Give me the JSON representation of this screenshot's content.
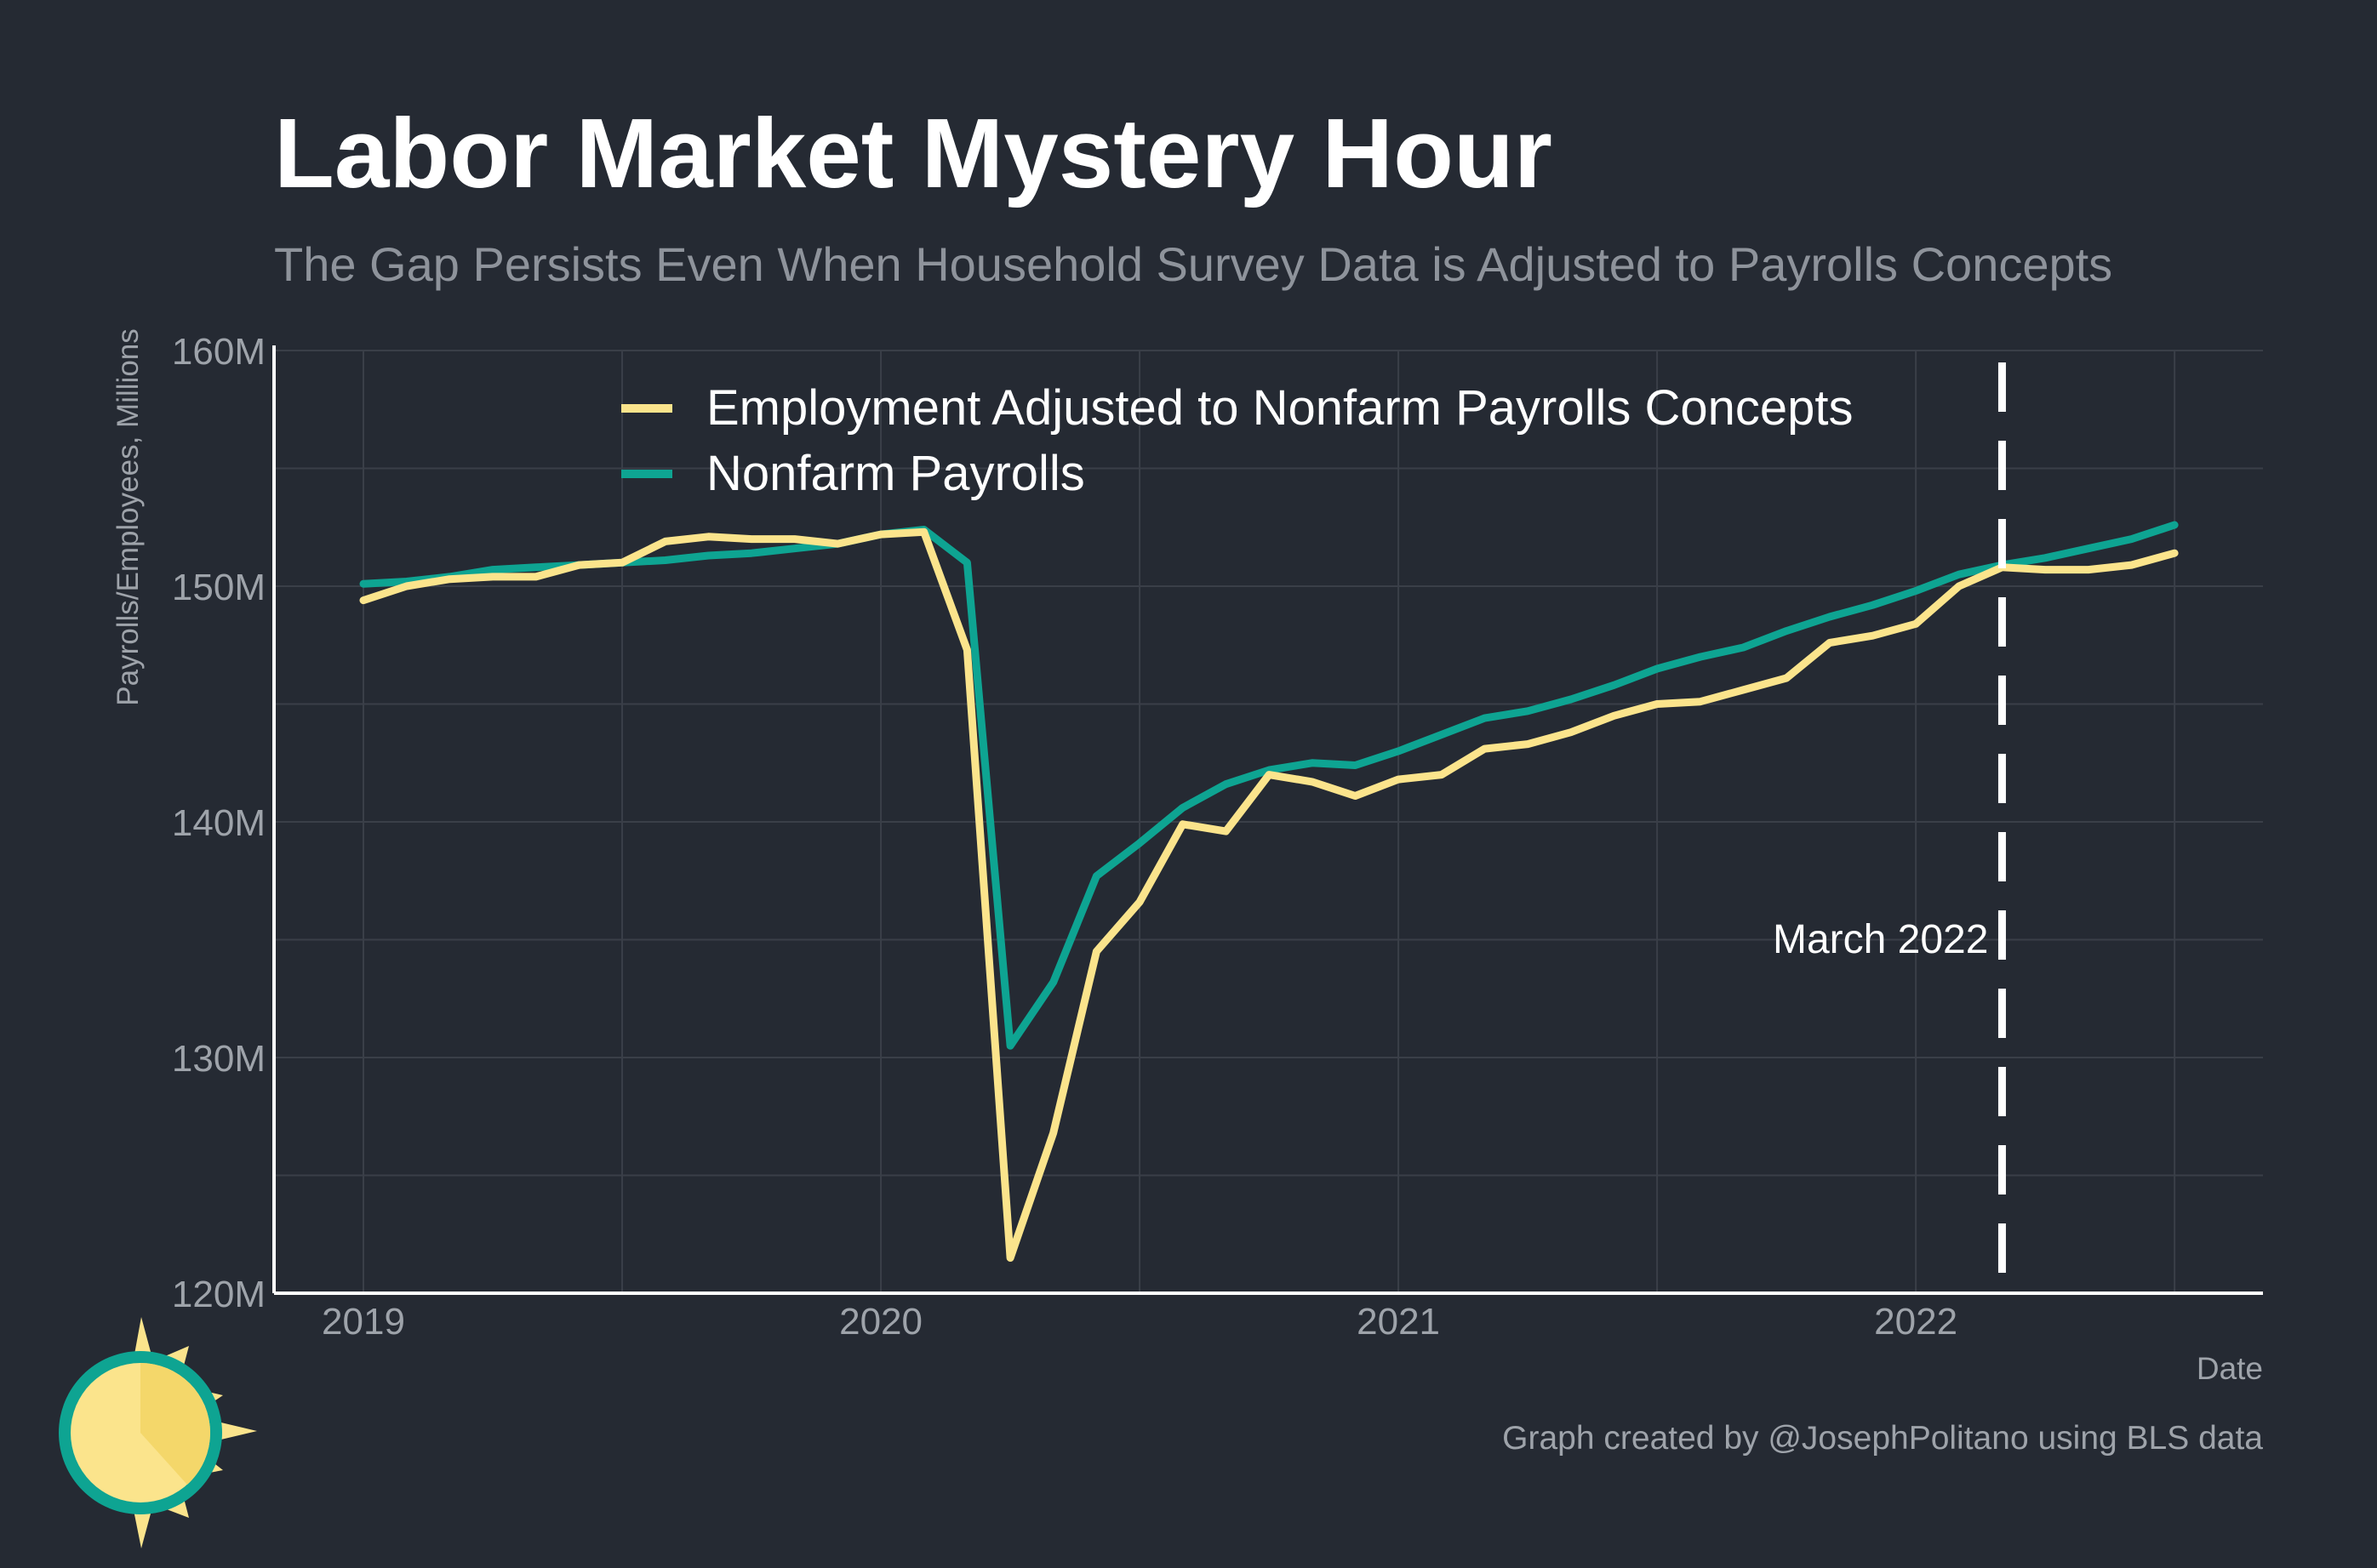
{
  "chart_data": {
    "type": "line",
    "title": "Labor Market Mystery Hour",
    "subtitle": "The Gap Persists Even When Household Survey Data is Adjusted to Payrolls Concepts",
    "xlabel": "Date",
    "ylabel": "Payrolls/Employees, Millions",
    "ylim": [
      120,
      160
    ],
    "yticks": [
      120,
      130,
      140,
      150,
      160
    ],
    "ytick_labels": [
      "120M",
      "130M",
      "140M",
      "150M",
      "160M"
    ],
    "xticks": [
      "2019",
      "2020",
      "2021",
      "2022"
    ],
    "grid": true,
    "legend_position": "top-center",
    "x": [
      "2019-01",
      "2019-02",
      "2019-03",
      "2019-04",
      "2019-05",
      "2019-06",
      "2019-07",
      "2019-08",
      "2019-09",
      "2019-10",
      "2019-11",
      "2019-12",
      "2020-01",
      "2020-02",
      "2020-03",
      "2020-04",
      "2020-05",
      "2020-06",
      "2020-07",
      "2020-08",
      "2020-09",
      "2020-10",
      "2020-11",
      "2020-12",
      "2021-01",
      "2021-02",
      "2021-03",
      "2021-04",
      "2021-05",
      "2021-06",
      "2021-07",
      "2021-08",
      "2021-09",
      "2021-10",
      "2021-11",
      "2021-12",
      "2022-01",
      "2022-02",
      "2022-03",
      "2022-04",
      "2022-05",
      "2022-06",
      "2022-07"
    ],
    "series": [
      {
        "name": "Employment Adjusted to Nonfarm Payrolls Concepts",
        "color": "#fbe48c",
        "values": [
          149.4,
          150.0,
          150.3,
          150.4,
          150.4,
          150.9,
          151.0,
          151.9,
          152.1,
          152.0,
          152.0,
          151.8,
          152.2,
          152.3,
          147.3,
          121.5,
          126.8,
          134.5,
          136.6,
          139.9,
          139.6,
          142.0,
          141.7,
          141.1,
          141.8,
          142.0,
          143.1,
          143.3,
          143.8,
          144.5,
          145.0,
          145.1,
          145.6,
          146.1,
          147.6,
          147.9,
          148.4,
          150.0,
          150.8,
          150.7,
          150.7,
          150.9,
          151.4
        ]
      },
      {
        "name": "Nonfarm Payrolls",
        "color": "#0ea492",
        "values": [
          150.1,
          150.2,
          150.4,
          150.7,
          150.8,
          150.9,
          151.0,
          151.1,
          151.3,
          151.4,
          151.6,
          151.8,
          152.2,
          152.4,
          151.0,
          130.5,
          133.2,
          137.7,
          139.1,
          140.6,
          141.6,
          142.2,
          142.5,
          142.4,
          143.0,
          143.7,
          144.4,
          144.7,
          145.2,
          145.8,
          146.5,
          147.0,
          147.4,
          148.1,
          148.7,
          149.2,
          149.8,
          150.5,
          150.9,
          151.2,
          151.6,
          152.0,
          152.6
        ]
      }
    ],
    "annotations": [
      {
        "type": "vline",
        "x": "2022-03",
        "label": "March 2022",
        "color": "#ffffff",
        "style": "dashed"
      }
    ],
    "caption": "Graph created by @JosephPolitano using BLS data"
  }
}
